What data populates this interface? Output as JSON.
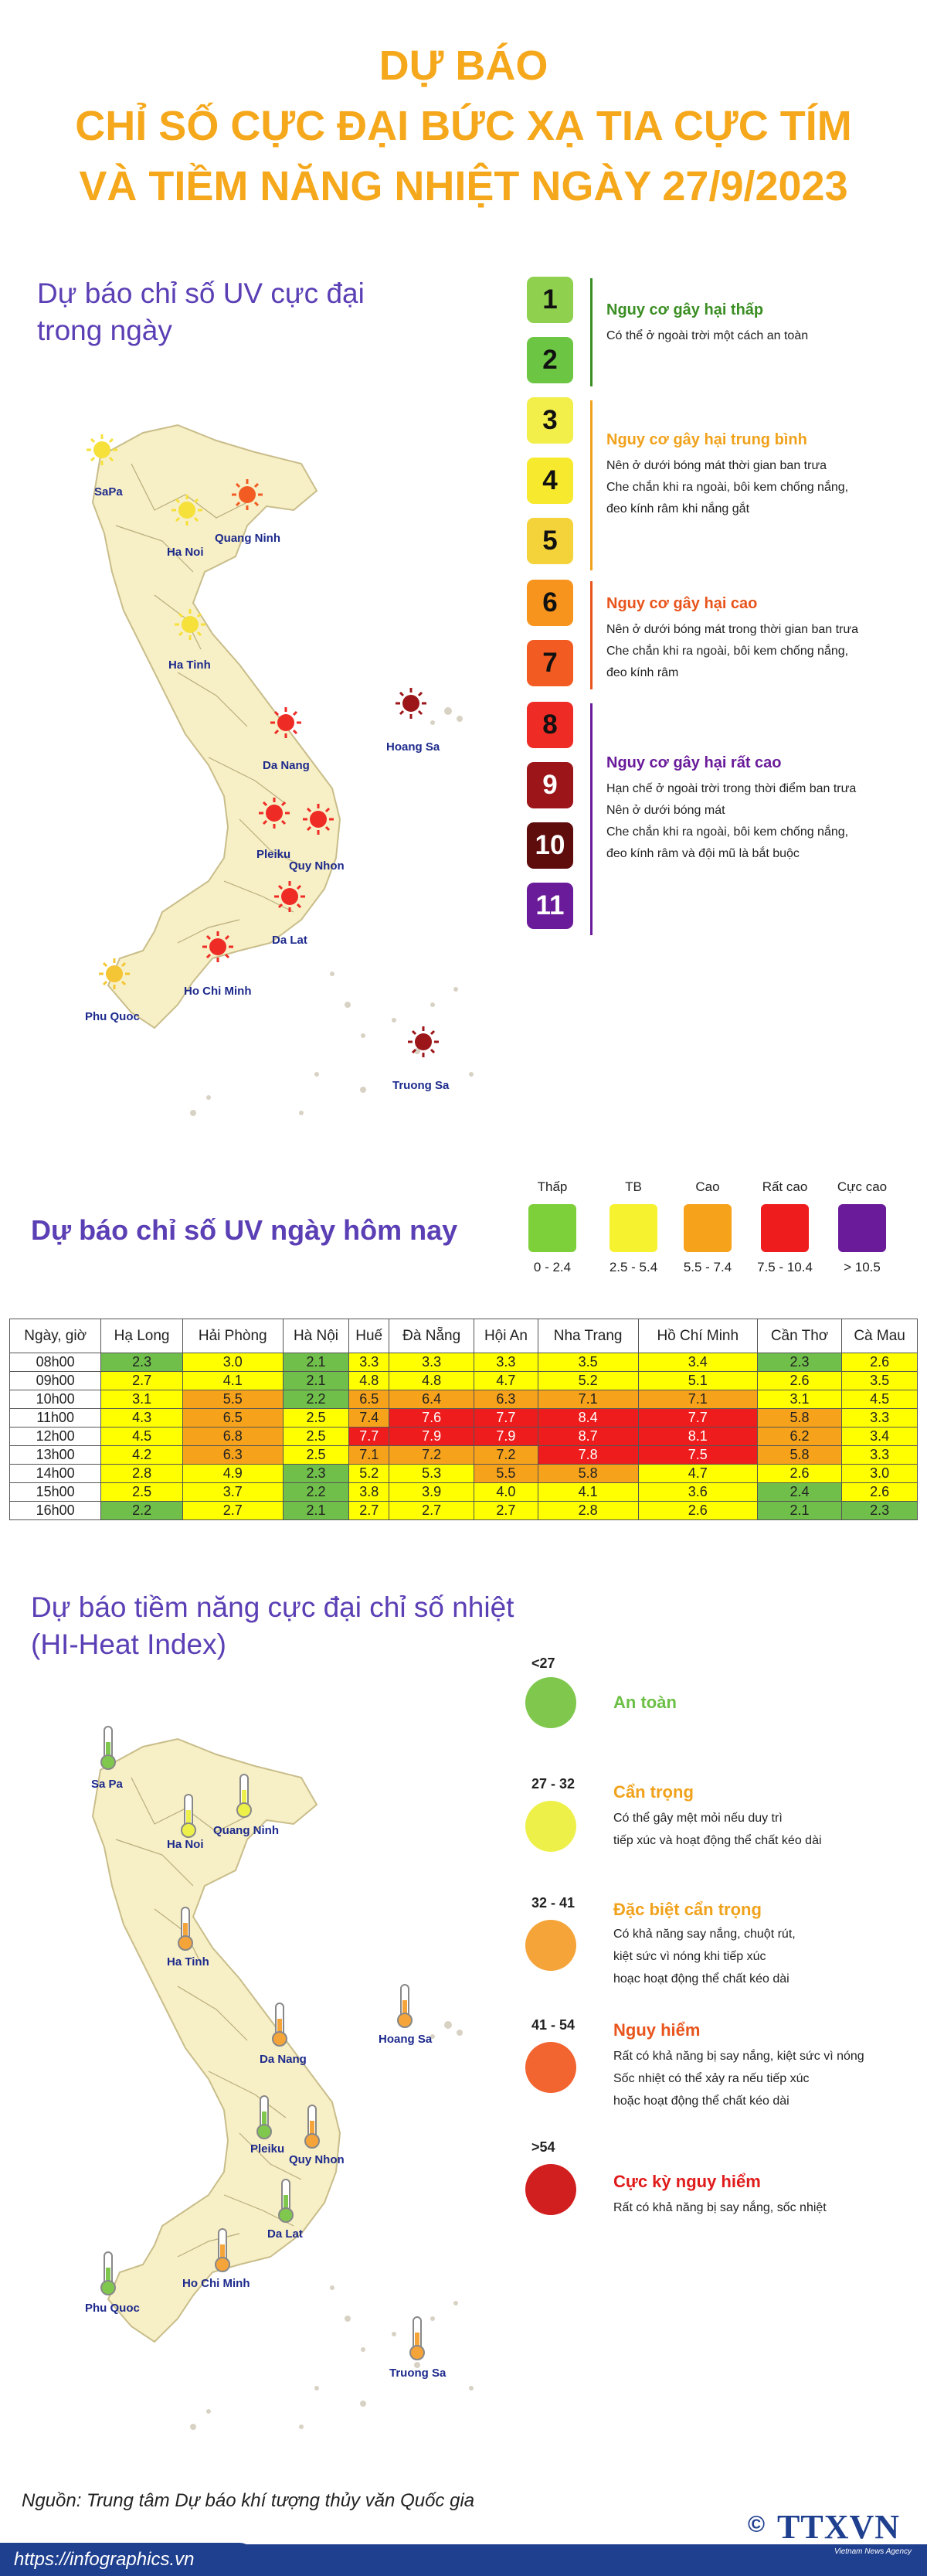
{
  "header": {
    "line1": "DỰ BÁO",
    "line2": "CHỈ SỐ CỰC ĐẠI BỨC XẠ TIA CỰC TÍM",
    "line3": "VÀ TIỀM NĂNG NHIỆT NGÀY 27/9/2023"
  },
  "uv_map": {
    "title_line1": "Dự báo chỉ số UV cực đại",
    "title_line2": "trong ngày",
    "cities": [
      {
        "name": "SaPa",
        "level": "yellow"
      },
      {
        "name": "Quang Ninh",
        "level": "orange"
      },
      {
        "name": "Ha Noi",
        "level": "yellow"
      },
      {
        "name": "Ha Tinh",
        "level": "yellow"
      },
      {
        "name": "Hoang Sa",
        "level": "darkred"
      },
      {
        "name": "Da Nang",
        "level": "red"
      },
      {
        "name": "Pleiku",
        "level": "red"
      },
      {
        "name": "Quy Nhon",
        "level": "red"
      },
      {
        "name": "Da Lat",
        "level": "red"
      },
      {
        "name": "Ho Chi Minh",
        "level": "red"
      },
      {
        "name": "Phu Quoc",
        "level": "yellow"
      },
      {
        "name": "Truong Sa",
        "level": "darkred"
      }
    ],
    "scale": [
      {
        "n": "1",
        "color": "#8fd14f"
      },
      {
        "n": "2",
        "color": "#6cc644"
      },
      {
        "n": "3",
        "color": "#f2ee4a"
      },
      {
        "n": "4",
        "color": "#f7ea2e"
      },
      {
        "n": "5",
        "color": "#f4d33a"
      },
      {
        "n": "6",
        "color": "#f7941d"
      },
      {
        "n": "7",
        "color": "#f25c22"
      },
      {
        "n": "8",
        "color": "#ee2b24"
      },
      {
        "n": "9",
        "color": "#9c1518"
      },
      {
        "n": "10",
        "color": "#5e0c0c"
      },
      {
        "n": "11",
        "color": "#6a1b9a"
      }
    ],
    "groups": [
      {
        "title": "Nguy cơ gây hại thấp",
        "color": "#3b8e23",
        "lines": [
          "Có thể ở ngoài trời một cách an toàn"
        ]
      },
      {
        "title": "Nguy cơ gây hại trung bình",
        "color": "#f0a21c",
        "lines": [
          "Nên ở dưới bóng mát thời gian ban trưa",
          "Che chắn khi ra ngoài, bôi kem chống nắng,",
          "đeo kính râm khi nắng gắt"
        ]
      },
      {
        "title": "Nguy cơ gây hại cao",
        "color": "#e8541c",
        "lines": [
          "Nên ở dưới bóng mát trong thời gian ban trưa",
          "Che chắn khi ra ngoài, bôi kem chống nắng,",
          "đeo kính râm"
        ]
      },
      {
        "title": "Nguy cơ gây hại rất cao",
        "color": "#6a1b9a",
        "lines": [
          "Hạn chế ở ngoài trời trong thời điểm ban trưa",
          "Nên ở dưới bóng mát",
          "Che chắn khi ra ngoài, bôi kem chống nắng,",
          "đeo kính râm và đội mũ là bắt buộc"
        ]
      }
    ]
  },
  "uv_today": {
    "title": "Dự báo chỉ số UV ngày hôm nay",
    "legend": [
      {
        "label": "Thấp",
        "range": "0 - 2.4",
        "color": "#7ed03a"
      },
      {
        "label": "TB",
        "range": "2.5 - 5.4",
        "color": "#f6f230"
      },
      {
        "label": "Cao",
        "range": "5.5 - 7.4",
        "color": "#f7a21b"
      },
      {
        "label": "Rất cao",
        "range": "7.5 - 10.4",
        "color": "#ee1c1c"
      },
      {
        "label": "Cực cao",
        "range": "> 10.5",
        "color": "#6a1b9a"
      }
    ]
  },
  "table": {
    "headers": [
      "Ngày, giờ",
      "Hạ Long",
      "Hải Phòng",
      "Hà Nội",
      "Huế",
      "Đà Nẵng",
      "Hội An",
      "Nha Trang",
      "Hồ Chí Minh",
      "Cần Thơ",
      "Cà Mau"
    ],
    "rows": [
      {
        "time": "08h00",
        "values": [
          "2.3",
          "3.0",
          "2.1",
          "3.3",
          "3.3",
          "3.3",
          "3.5",
          "3.4",
          "2.3",
          "2.6"
        ]
      },
      {
        "time": "09h00",
        "values": [
          "2.7",
          "4.1",
          "2.1",
          "4.8",
          "4.8",
          "4.7",
          "5.2",
          "5.1",
          "2.6",
          "3.5"
        ]
      },
      {
        "time": "10h00",
        "values": [
          "3.1",
          "5.5",
          "2.2",
          "6.5",
          "6.4",
          "6.3",
          "7.1",
          "7.1",
          "3.1",
          "4.5"
        ]
      },
      {
        "time": "11h00",
        "values": [
          "4.3",
          "6.5",
          "2.5",
          "7.4",
          "7.6",
          "7.7",
          "8.4",
          "7.7",
          "5.8",
          "3.3"
        ]
      },
      {
        "time": "12h00",
        "values": [
          "4.5",
          "6.8",
          "2.5",
          "7.7",
          "7.9",
          "7.9",
          "8.7",
          "8.1",
          "6.2",
          "3.4"
        ]
      },
      {
        "time": "13h00",
        "values": [
          "4.2",
          "6.3",
          "2.5",
          "7.1",
          "7.2",
          "7.2",
          "7.8",
          "7.5",
          "5.8",
          "3.3"
        ]
      },
      {
        "time": "14h00",
        "values": [
          "2.8",
          "4.9",
          "2.3",
          "5.2",
          "5.3",
          "5.5",
          "5.8",
          "4.7",
          "2.6",
          "3.0"
        ]
      },
      {
        "time": "15h00",
        "values": [
          "2.5",
          "3.7",
          "2.2",
          "3.8",
          "3.9",
          "4.0",
          "4.1",
          "3.6",
          "2.4",
          "2.6"
        ]
      },
      {
        "time": "16h00",
        "values": [
          "2.2",
          "2.7",
          "2.1",
          "2.7",
          "2.7",
          "2.7",
          "2.8",
          "2.6",
          "2.1",
          "2.3"
        ]
      }
    ]
  },
  "heat": {
    "title_line1": "Dự báo tiềm năng cực đại chỉ số nhiệt",
    "title_line2": "(HI-Heat Index)",
    "cities": [
      {
        "name": "Sa Pa",
        "level": "green"
      },
      {
        "name": "Quang Ninh",
        "level": "yellow"
      },
      {
        "name": "Ha Noi",
        "level": "yellow"
      },
      {
        "name": "Ha Tinh",
        "level": "orange"
      },
      {
        "name": "Hoang Sa",
        "level": "orange"
      },
      {
        "name": "Da Nang",
        "level": "orange"
      },
      {
        "name": "Pleiku",
        "level": "green"
      },
      {
        "name": "Quy Nhon",
        "level": "orange"
      },
      {
        "name": "Da Lat",
        "level": "green"
      },
      {
        "name": "Ho Chi Minh",
        "level": "orange"
      },
      {
        "name": "Phu Quoc",
        "level": "green"
      },
      {
        "name": "Truong Sa",
        "level": "orange"
      }
    ],
    "levels": [
      {
        "range": "<27",
        "title": "An toàn",
        "title_color": "#6cbf45",
        "circle": "#7fc84d",
        "lines": []
      },
      {
        "range": "27 - 32",
        "title": "Cẩn trọng",
        "title_color": "#f0a21c",
        "circle": "#eef04a",
        "lines": [
          "Có thể gây mệt mỏi nếu duy trì",
          "tiếp xúc và hoạt động thể chất kéo dài"
        ]
      },
      {
        "range": "32 - 41",
        "title": "Đặc biệt cẩn trọng",
        "title_color": "#f0a21c",
        "circle": "#f5a43a",
        "lines": [
          "Có khả năng say nắng, chuột rút,",
          "kiệt sức vì nóng khi tiếp xúc",
          "hoạc hoạt động thể chất kéo dài"
        ]
      },
      {
        "range": "41 - 54",
        "title": "Nguy hiểm",
        "title_color": "#e8541c",
        "circle": "#f26430",
        "lines": [
          "Rất có khả năng bị say nắng, kiệt sức vì nóng",
          "Sốc nhiệt có thể xảy ra nếu tiếp xúc",
          "hoặc hoạt động thể chất kéo dài"
        ]
      },
      {
        "range": ">54",
        "title": "Cực kỳ nguy hiểm",
        "title_color": "#e01b1b",
        "circle": "#d11f1f",
        "lines": [
          "Rất có khả năng bị say nắng, sốc nhiệt"
        ]
      }
    ]
  },
  "footer": {
    "source": "Nguồn: Trung tâm Dự báo khí tượng thủy văn Quốc gia",
    "url": "https://infographics.vn",
    "logo": "TTXVN",
    "logo_sub": "Vietnam News Agency",
    "copyright": "©"
  }
}
